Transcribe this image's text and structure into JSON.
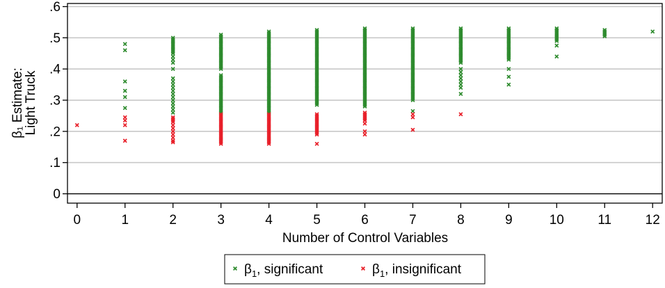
{
  "chart_data": {
    "type": "scatter",
    "xlabel": "Number of Control Variables",
    "ylabel_line1": "β₁ Estimate:",
    "ylabel_line2": "Light Truck",
    "x_ticks": [
      "0",
      "1",
      "2",
      "3",
      "4",
      "5",
      "6",
      "7",
      "8",
      "9",
      "10",
      "11",
      "12"
    ],
    "y_ticks": [
      "0",
      ".1",
      ".2",
      ".3",
      ".4",
      ".5",
      ".6"
    ],
    "xlim": [
      -0.2,
      12.2
    ],
    "ylim": [
      -0.03,
      0.61
    ],
    "grid": true,
    "legend_position": "bottom",
    "series": [
      {
        "name": "β₁, significant",
        "legend_base": "β",
        "legend_sub": "1",
        "legend_rest": ", significant",
        "color": "#2e8b2e",
        "marker": "x",
        "points_by_x": [
          {
            "x": 1,
            "y": [
              0.48,
              0.46,
              0.36,
              0.33,
              0.31,
              0.275
            ]
          },
          {
            "x": 2,
            "y": [
              0.5,
              0.495,
              0.49,
              0.485,
              0.48,
              0.475,
              0.47,
              0.465,
              0.46,
              0.455,
              0.45,
              0.44,
              0.43,
              0.42,
              0.4,
              0.37,
              0.36,
              0.35,
              0.34,
              0.33,
              0.32,
              0.31,
              0.3,
              0.29,
              0.28,
              0.27,
              0.26
            ]
          },
          {
            "x": 3,
            "y": [
              0.51,
              0.505,
              0.5,
              0.495,
              0.49,
              0.485,
              0.48,
              0.475,
              0.47,
              0.465,
              0.46,
              0.455,
              0.45,
              0.445,
              0.44,
              0.435,
              0.43,
              0.425,
              0.42,
              0.415,
              0.41,
              0.405,
              0.4,
              0.38,
              0.375,
              0.37,
              0.365,
              0.36,
              0.355,
              0.35,
              0.345,
              0.34,
              0.335,
              0.33,
              0.325,
              0.32,
              0.315,
              0.31,
              0.305,
              0.3,
              0.295,
              0.29,
              0.285,
              0.28,
              0.275,
              0.27,
              0.265,
              0.26
            ]
          },
          {
            "x": 4,
            "y": [
              0.52,
              0.515,
              0.51,
              0.505,
              0.5,
              0.495,
              0.49,
              0.485,
              0.48,
              0.475,
              0.47,
              0.465,
              0.46,
              0.455,
              0.45,
              0.445,
              0.44,
              0.435,
              0.43,
              0.425,
              0.42,
              0.415,
              0.41,
              0.405,
              0.4,
              0.395,
              0.39,
              0.385,
              0.38,
              0.375,
              0.37,
              0.365,
              0.36,
              0.355,
              0.35,
              0.345,
              0.34,
              0.335,
              0.33,
              0.325,
              0.32,
              0.315,
              0.31,
              0.305,
              0.3,
              0.295,
              0.29,
              0.285,
              0.28,
              0.275,
              0.27,
              0.265,
              0.26
            ]
          },
          {
            "x": 5,
            "y": [
              0.525,
              0.52,
              0.515,
              0.51,
              0.505,
              0.5,
              0.495,
              0.49,
              0.485,
              0.48,
              0.475,
              0.47,
              0.465,
              0.46,
              0.455,
              0.45,
              0.445,
              0.44,
              0.435,
              0.43,
              0.425,
              0.42,
              0.415,
              0.41,
              0.405,
              0.4,
              0.395,
              0.39,
              0.385,
              0.38,
              0.375,
              0.37,
              0.365,
              0.36,
              0.355,
              0.35,
              0.345,
              0.34,
              0.335,
              0.33,
              0.325,
              0.32,
              0.315,
              0.31,
              0.305,
              0.3,
              0.295,
              0.29,
              0.285
            ]
          },
          {
            "x": 6,
            "y": [
              0.53,
              0.525,
              0.52,
              0.515,
              0.51,
              0.505,
              0.5,
              0.495,
              0.49,
              0.485,
              0.48,
              0.475,
              0.47,
              0.465,
              0.46,
              0.455,
              0.45,
              0.445,
              0.44,
              0.435,
              0.43,
              0.425,
              0.42,
              0.415,
              0.41,
              0.405,
              0.4,
              0.395,
              0.39,
              0.385,
              0.38,
              0.375,
              0.37,
              0.365,
              0.36,
              0.355,
              0.35,
              0.345,
              0.34,
              0.335,
              0.33,
              0.325,
              0.32,
              0.315,
              0.31,
              0.305,
              0.3,
              0.295,
              0.29,
              0.285,
              0.28
            ]
          },
          {
            "x": 7,
            "y": [
              0.53,
              0.525,
              0.52,
              0.515,
              0.51,
              0.505,
              0.5,
              0.495,
              0.49,
              0.485,
              0.48,
              0.475,
              0.47,
              0.465,
              0.46,
              0.455,
              0.45,
              0.445,
              0.44,
              0.435,
              0.43,
              0.425,
              0.42,
              0.415,
              0.41,
              0.405,
              0.4,
              0.395,
              0.39,
              0.385,
              0.38,
              0.375,
              0.37,
              0.365,
              0.36,
              0.355,
              0.35,
              0.345,
              0.34,
              0.335,
              0.33,
              0.325,
              0.32,
              0.315,
              0.31,
              0.305,
              0.3,
              0.265
            ]
          },
          {
            "x": 8,
            "y": [
              0.53,
              0.525,
              0.52,
              0.515,
              0.51,
              0.505,
              0.5,
              0.495,
              0.49,
              0.485,
              0.48,
              0.475,
              0.47,
              0.465,
              0.46,
              0.455,
              0.45,
              0.445,
              0.44,
              0.435,
              0.43,
              0.425,
              0.42,
              0.4,
              0.39,
              0.38,
              0.37,
              0.36,
              0.35,
              0.34,
              0.32
            ]
          },
          {
            "x": 9,
            "y": [
              0.53,
              0.525,
              0.52,
              0.515,
              0.51,
              0.505,
              0.5,
              0.495,
              0.49,
              0.485,
              0.48,
              0.475,
              0.47,
              0.465,
              0.46,
              0.455,
              0.45,
              0.445,
              0.44,
              0.435,
              0.43,
              0.4,
              0.375,
              0.35
            ]
          },
          {
            "x": 10,
            "y": [
              0.53,
              0.525,
              0.52,
              0.515,
              0.51,
              0.505,
              0.5,
              0.495,
              0.49,
              0.475,
              0.44
            ]
          },
          {
            "x": 11,
            "y": [
              0.525,
              0.52,
              0.515,
              0.51,
              0.505
            ]
          },
          {
            "x": 12,
            "y": [
              0.52
            ]
          }
        ]
      },
      {
        "name": "β₁, insignificant",
        "legend_base": "β",
        "legend_sub": "1",
        "legend_rest": ", insignificant",
        "color": "#e8202a",
        "marker": "x",
        "points_by_x": [
          {
            "x": 0,
            "y": [
              0.22
            ]
          },
          {
            "x": 1,
            "y": [
              0.245,
              0.235,
              0.22,
              0.17
            ]
          },
          {
            "x": 2,
            "y": [
              0.245,
              0.24,
              0.235,
              0.23,
              0.22,
              0.21,
              0.2,
              0.19,
              0.18,
              0.17,
              0.165
            ]
          },
          {
            "x": 3,
            "y": [
              0.255,
              0.25,
              0.245,
              0.24,
              0.235,
              0.23,
              0.225,
              0.22,
              0.215,
              0.21,
              0.205,
              0.2,
              0.195,
              0.19,
              0.185,
              0.18,
              0.175,
              0.17,
              0.165,
              0.16
            ]
          },
          {
            "x": 4,
            "y": [
              0.255,
              0.25,
              0.245,
              0.24,
              0.235,
              0.23,
              0.225,
              0.22,
              0.215,
              0.21,
              0.205,
              0.2,
              0.195,
              0.19,
              0.185,
              0.18,
              0.175,
              0.17,
              0.165,
              0.16
            ]
          },
          {
            "x": 5,
            "y": [
              0.255,
              0.25,
              0.245,
              0.24,
              0.235,
              0.23,
              0.225,
              0.22,
              0.215,
              0.21,
              0.205,
              0.2,
              0.195,
              0.19,
              0.16
            ]
          },
          {
            "x": 6,
            "y": [
              0.26,
              0.255,
              0.25,
              0.245,
              0.24,
              0.235,
              0.225,
              0.2,
              0.19
            ]
          },
          {
            "x": 7,
            "y": [
              0.255,
              0.245,
              0.205
            ]
          },
          {
            "x": 8,
            "y": [
              0.255
            ]
          }
        ]
      }
    ]
  }
}
